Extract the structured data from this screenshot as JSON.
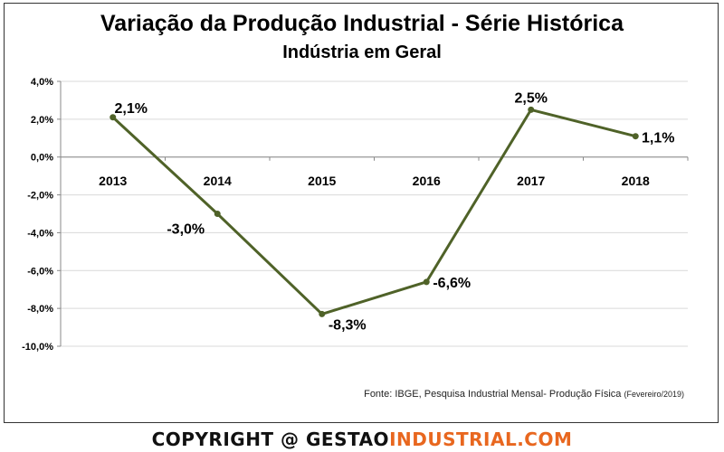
{
  "chart_data": {
    "type": "line",
    "title": "Variação da Produção Industrial - Série Histórica",
    "subtitle": "Indústria em Geral",
    "categories": [
      "2013",
      "2014",
      "2015",
      "2016",
      "2017",
      "2018"
    ],
    "series": [
      {
        "values": [
          2.1,
          -3.0,
          -8.3,
          -6.6,
          2.5,
          1.1
        ],
        "labels": [
          "2,1%",
          "-3,0%",
          "-8,3%",
          "-6,6%",
          "2,5%",
          "1,1%"
        ],
        "color": "#4f6228"
      }
    ],
    "ylim": [
      -10,
      4
    ],
    "yticks": [
      4,
      2,
      0,
      -2,
      -4,
      -6,
      -8,
      -10
    ],
    "ytick_labels": [
      "4,0%",
      "2,0%",
      "0,0%",
      "-2,0%",
      "-4,0%",
      "-6,0%",
      "-8,0%",
      "-10,0%"
    ],
    "grid": "horizontal",
    "xlabel": "",
    "ylabel": ""
  },
  "source": {
    "text": "Fonte: IBGE, Pesquisa Industrial Mensal- Produção Física",
    "date": "(Fevereiro/2019)"
  },
  "copyright": {
    "prefix": "COPYRIGHT @ ",
    "brand1": "GESTAO",
    "brand2": "INDUSTRIAL.COM"
  }
}
